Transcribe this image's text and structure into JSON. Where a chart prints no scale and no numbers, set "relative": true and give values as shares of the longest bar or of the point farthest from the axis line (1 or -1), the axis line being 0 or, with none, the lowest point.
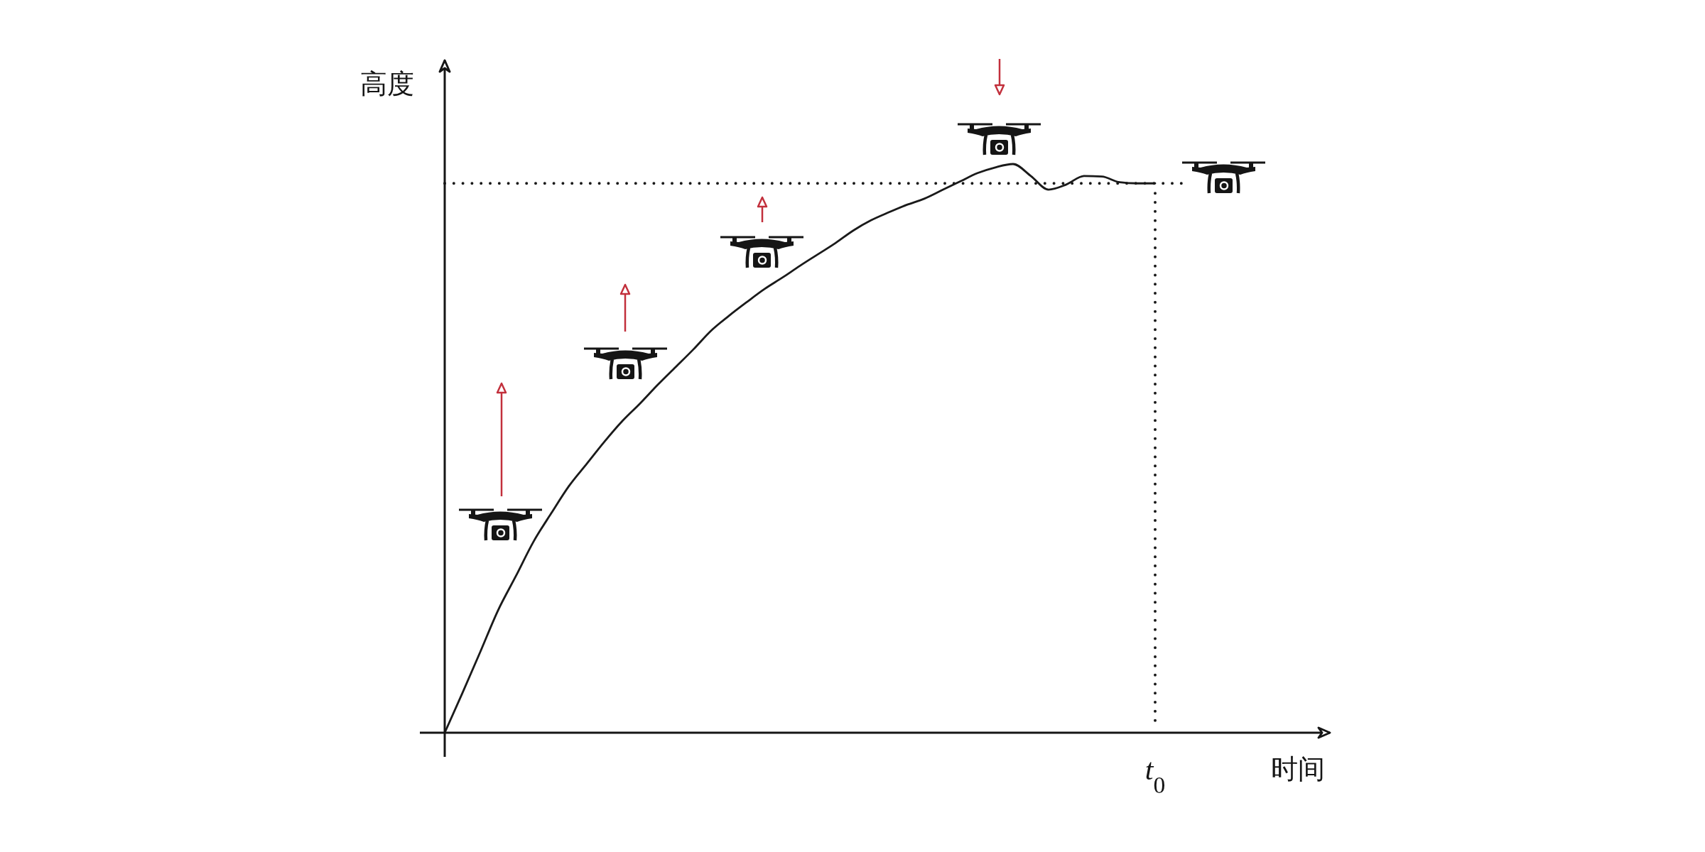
{
  "chart_data": {
    "type": "line",
    "relative": true,
    "xlabel": "时间",
    "ylabel": "高度",
    "color": "#1a1a1a",
    "categories": [
      null,
      null,
      null,
      null,
      null,
      null,
      null,
      null,
      null,
      null,
      null,
      null,
      null,
      null,
      null,
      null,
      null,
      null,
      null,
      null,
      null,
      null,
      null,
      null,
      null,
      null,
      null,
      null,
      null,
      null,
      null,
      null,
      null,
      null,
      null,
      null,
      null,
      null,
      null,
      null,
      null
    ],
    "values": [
      0,
      0.07,
      0.142,
      0.215,
      0.275,
      0.336,
      0.386,
      0.434,
      0.473,
      0.512,
      0.548,
      0.579,
      0.612,
      0.643,
      0.674,
      0.707,
      0.733,
      0.757,
      0.78,
      0.8,
      0.821,
      0.841,
      0.861,
      0.883,
      0.901,
      0.915,
      0.928,
      0.939,
      0.954,
      0.969,
      0.984,
      0.994,
      1,
      0.979,
      0.955,
      0.964,
      0.979,
      0.978,
      0.968,
      0.966,
      0.966
    ],
    "ref_lines": [
      {
        "axis": "y",
        "value": 0.966,
        "line_style": "dotted",
        "color": "#1a1a1a"
      }
    ],
    "annotations": [
      "t$_{0}$"
    ]
  }
}
